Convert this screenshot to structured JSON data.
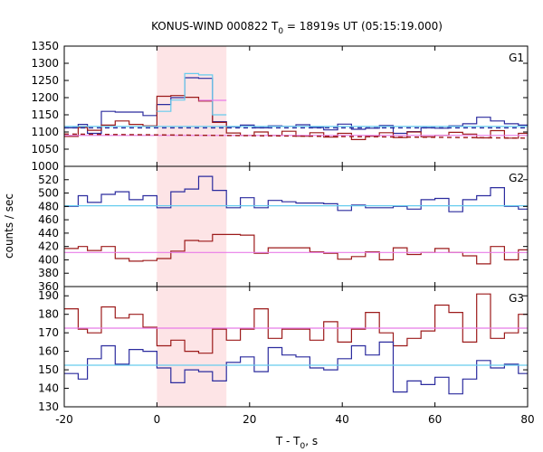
{
  "chart_data": {
    "type": "line",
    "title": {
      "main": "KONUS-WIND 000822 T",
      "sub": "0",
      "rest": " = 18919s UT (05:15:19.000)"
    },
    "xlabel": {
      "main": "T - T",
      "sub": "0",
      "rest": ", s"
    },
    "ylabel": "counts / sec",
    "xlim": [
      -20,
      80
    ],
    "xticks": [
      -20,
      0,
      20,
      40,
      60,
      80
    ],
    "highlight_interval": [
      0,
      15
    ],
    "colors": {
      "blue": "#2b2b9e",
      "red": "#9c1a1a",
      "cyan": "#66ccee",
      "magenta": "#e87be8",
      "shade": "#fde4e6"
    },
    "panels": [
      {
        "name": "G1",
        "ylim": [
          1000,
          1350
        ],
        "yticks": [
          1000,
          1050,
          1100,
          1150,
          1200,
          1250,
          1300,
          1350
        ],
        "series": [
          {
            "color": "blue",
            "style": "step",
            "x": [
              -20,
              -17,
              -15,
              -12,
              -9,
              -6,
              -3,
              0,
              3,
              6,
              9,
              12,
              15,
              18,
              21,
              24,
              27,
              30,
              33,
              36,
              39,
              42,
              45,
              48,
              51,
              54,
              57,
              60,
              63,
              66,
              69,
              72,
              75,
              78
            ],
            "y": [
              1112,
              1122,
              1096,
              1160,
              1158,
              1158,
              1148,
              1180,
              1200,
              1258,
              1256,
              1130,
              1115,
              1120,
              1112,
              1118,
              1116,
              1121,
              1113,
              1106,
              1123,
              1108,
              1111,
              1119,
              1096,
              1101,
              1112,
              1111,
              1118,
              1124,
              1143,
              1132,
              1124,
              1120
            ]
          },
          {
            "color": "red",
            "style": "step",
            "x": [
              -20,
              -17,
              -15,
              -12,
              -9,
              -6,
              -3,
              0,
              3,
              6,
              9,
              12,
              15,
              18,
              21,
              24,
              27,
              30,
              33,
              36,
              39,
              42,
              45,
              48,
              51,
              54,
              57,
              60,
              63,
              66,
              69,
              72,
              75,
              78
            ],
            "y": [
              1087,
              1113,
              1105,
              1120,
              1132,
              1122,
              1118,
              1204,
              1206,
              1201,
              1190,
              1128,
              1097,
              1090,
              1100,
              1090,
              1102,
              1088,
              1098,
              1085,
              1096,
              1078,
              1088,
              1098,
              1084,
              1100,
              1086,
              1090,
              1099,
              1094,
              1083,
              1104,
              1082,
              1096
            ]
          },
          {
            "color": "cyan",
            "style": "step",
            "x": [
              0,
              3,
              6,
              9,
              12,
              15
            ],
            "y": [
              1160,
              1193,
              1270,
              1266,
              1150,
              1150
            ]
          },
          {
            "color": "magenta",
            "style": "step",
            "x": [
              9,
              12,
              15
            ],
            "y": [
              1192,
              1192,
              1192
            ]
          },
          {
            "color": "magenta",
            "style": "line",
            "x": [
              -20,
              80
            ],
            "y": [
              1090,
              1090
            ]
          },
          {
            "color": "cyan",
            "style": "line",
            "x": [
              -20,
              80
            ],
            "y": [
              1116,
              1116
            ]
          },
          {
            "color": "blue",
            "style": "dashed",
            "x": [
              -20,
              80
            ],
            "y": [
              1112,
              1112
            ]
          },
          {
            "color": "red",
            "style": "dashed",
            "x": [
              -20,
              80
            ],
            "y": [
              1094,
              1082
            ]
          }
        ]
      },
      {
        "name": "G2",
        "ylim": [
          360,
          540
        ],
        "yticks": [
          360,
          380,
          400,
          420,
          440,
          460,
          480,
          500,
          520
        ],
        "series": [
          {
            "color": "blue",
            "style": "step",
            "x": [
              -20,
              -17,
              -15,
              -12,
              -9,
              -6,
              -3,
              0,
              3,
              6,
              9,
              12,
              15,
              18,
              21,
              24,
              27,
              30,
              33,
              36,
              39,
              42,
              45,
              48,
              51,
              54,
              57,
              60,
              63,
              66,
              69,
              72,
              75,
              78
            ],
            "y": [
              480,
              496,
              486,
              498,
              502,
              490,
              496,
              478,
              502,
              506,
              525,
              504,
              478,
              493,
              478,
              489,
              487,
              485,
              485,
              484,
              474,
              482,
              478,
              478,
              480,
              476,
              490,
              492,
              472,
              490,
              496,
              508,
              480,
              476
            ]
          },
          {
            "color": "red",
            "style": "step",
            "x": [
              -20,
              -17,
              -15,
              -12,
              -9,
              -6,
              -3,
              0,
              3,
              6,
              9,
              12,
              15,
              18,
              21,
              24,
              27,
              30,
              33,
              36,
              39,
              42,
              45,
              48,
              51,
              54,
              57,
              60,
              63,
              66,
              69,
              72,
              75,
              78
            ],
            "y": [
              417,
              420,
              414,
              420,
              402,
              398,
              399,
              402,
              413,
              429,
              428,
              438,
              438,
              437,
              410,
              418,
              418,
              418,
              412,
              410,
              401,
              405,
              412,
              400,
              418,
              408,
              411,
              417,
              411,
              406,
              394,
              420,
              400,
              415
            ]
          },
          {
            "color": "cyan",
            "style": "line",
            "x": [
              -20,
              80
            ],
            "y": [
              481,
              481
            ]
          },
          {
            "color": "magenta",
            "style": "line",
            "x": [
              -20,
              80
            ],
            "y": [
              411,
              411
            ]
          }
        ]
      },
      {
        "name": "G3",
        "ylim": [
          130,
          195
        ],
        "yticks": [
          130,
          140,
          150,
          160,
          170,
          180,
          190
        ],
        "series": [
          {
            "color": "red",
            "style": "step",
            "x": [
              -20,
              -17,
              -15,
              -12,
              -9,
              -6,
              -3,
              0,
              3,
              6,
              9,
              12,
              15,
              18,
              21,
              24,
              27,
              30,
              33,
              36,
              39,
              42,
              45,
              48,
              51,
              54,
              57,
              60,
              63,
              66,
              69,
              72,
              75,
              78
            ],
            "y": [
              183,
              172,
              170,
              184,
              178,
              180,
              173,
              163,
              166,
              160,
              159,
              172,
              166,
              172,
              183,
              167,
              172,
              172,
              166,
              176,
              165,
              172,
              181,
              170,
              163,
              167,
              171,
              185,
              181,
              165,
              191,
              167,
              170,
              180
            ]
          },
          {
            "color": "blue",
            "style": "step",
            "x": [
              -20,
              -17,
              -15,
              -12,
              -9,
              -6,
              -3,
              0,
              3,
              6,
              9,
              12,
              15,
              18,
              21,
              24,
              27,
              30,
              33,
              36,
              39,
              42,
              45,
              48,
              51,
              54,
              57,
              60,
              63,
              66,
              69,
              72,
              75,
              78
            ],
            "y": [
              148,
              145,
              156,
              163,
              153,
              161,
              160,
              151,
              143,
              150,
              149,
              144,
              154,
              157,
              149,
              162,
              158,
              157,
              151,
              150,
              156,
              163,
              158,
              165,
              138,
              144,
              142,
              146,
              137,
              145,
              155,
              151,
              153,
              148
            ]
          },
          {
            "color": "magenta",
            "style": "line",
            "x": [
              -20,
              80
            ],
            "y": [
              172.5,
              172.5
            ]
          },
          {
            "color": "cyan",
            "style": "line",
            "x": [
              -20,
              80
            ],
            "y": [
              152.5,
              152.5
            ]
          }
        ]
      }
    ]
  }
}
